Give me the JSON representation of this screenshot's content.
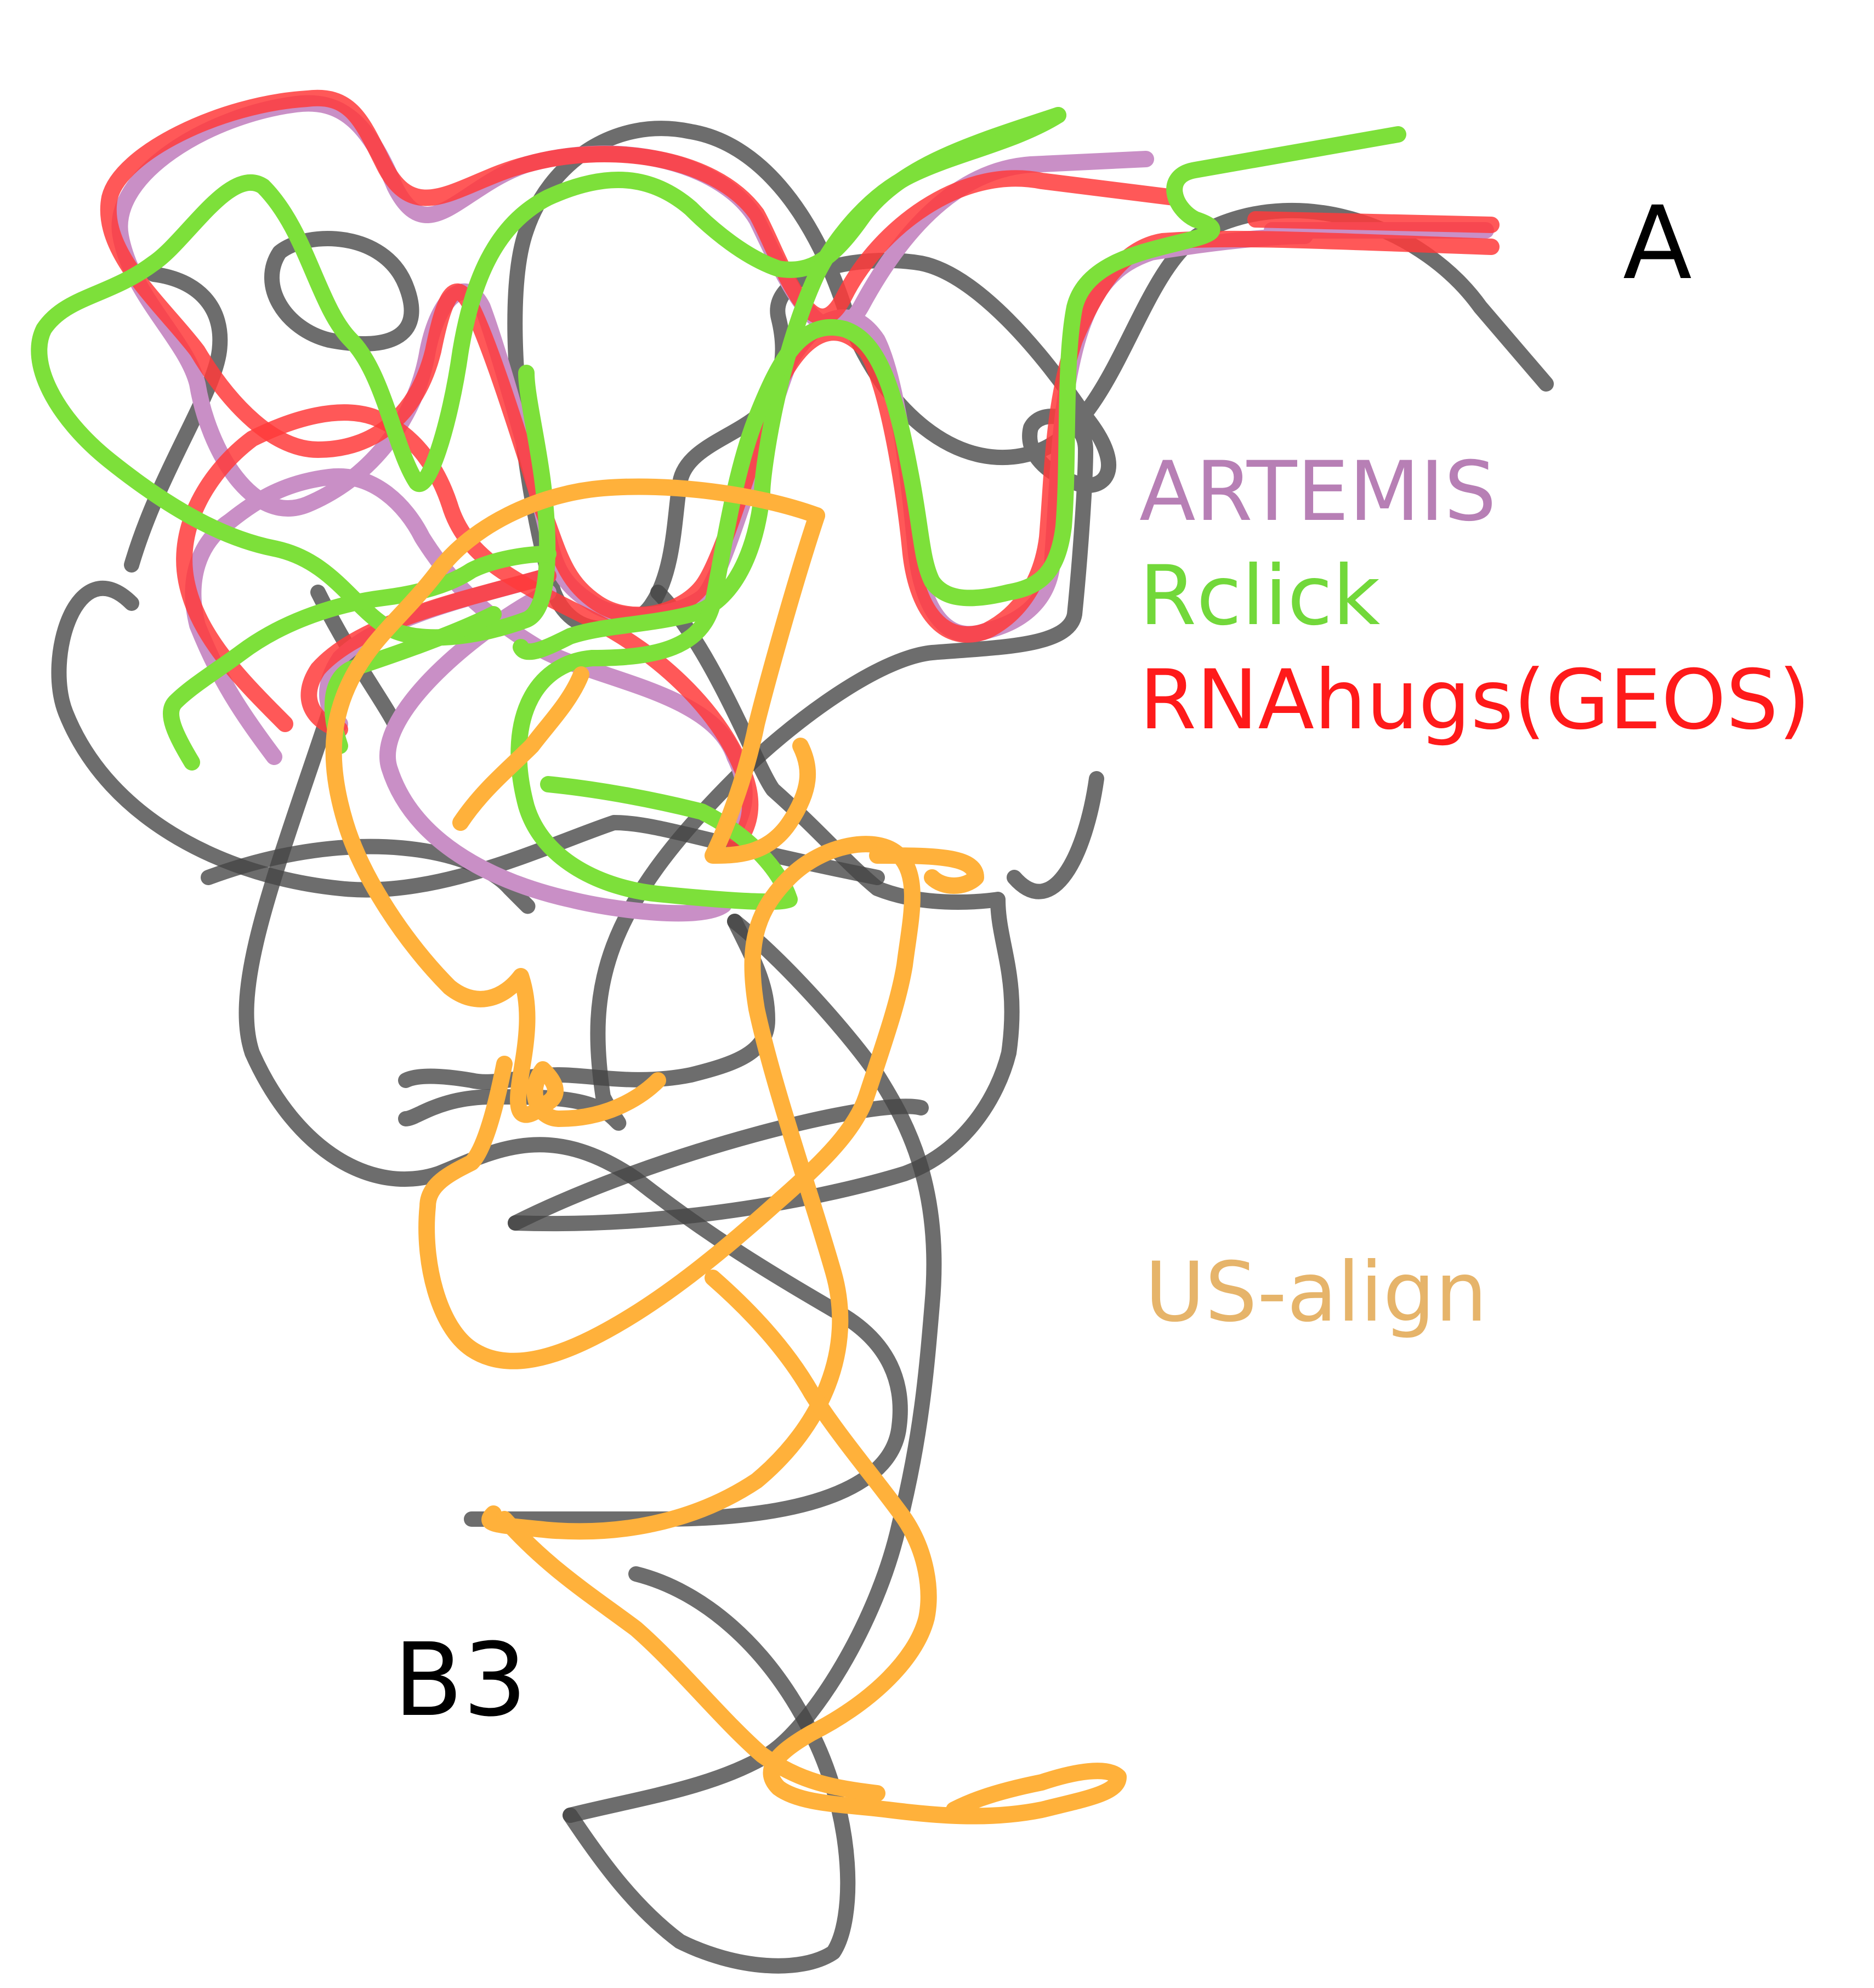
{
  "labels": {
    "domain_a": "A",
    "domain_b3": "B3",
    "artemis": "ARTEMIS",
    "rclick": "Rclick",
    "rnahugs": "RNAhugs(GEOS)",
    "usalign": "US-align"
  },
  "colors": {
    "reference": "#4a4a4a",
    "artemis": "#c98fc6",
    "artemis_text": "#b77fb5",
    "rclick": "#7de03a",
    "rclick_text": "#72d83a",
    "rnahugs": "#ff3b3b",
    "rnahugs_text": "#ff1a1a",
    "usalign": "#ffb13b",
    "usalign_text": "#e6b46a",
    "label_text": "#000000"
  }
}
